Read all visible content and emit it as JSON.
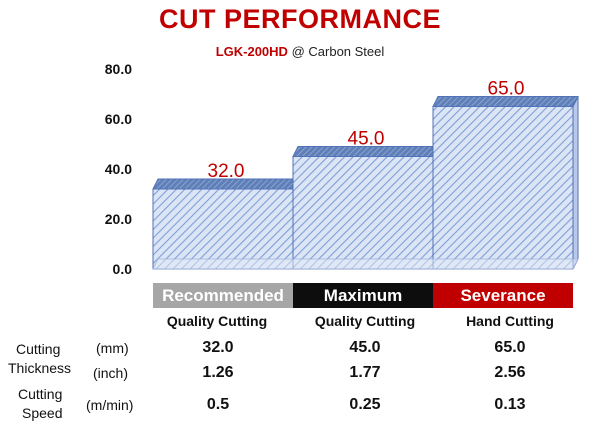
{
  "header": {
    "title": "CUT PERFORMANCE",
    "model": "LGK-200HD",
    "material": "@ Carbon Steel"
  },
  "chart_data": {
    "type": "bar",
    "categories": [
      "Recommended",
      "Maximum",
      "Severance"
    ],
    "values": [
      32.0,
      45.0,
      65.0
    ],
    "data_labels": [
      "32.0",
      "45.0",
      "65.0"
    ],
    "ylim": [
      0,
      80
    ],
    "yticks": [
      0,
      20,
      40,
      60,
      80
    ],
    "ytick_labels": [
      "0.0",
      "20.0",
      "40.0",
      "60.0",
      "80.0"
    ],
    "grid": false,
    "bar_style": "3d-hatched",
    "label_color": "#c00000"
  },
  "categories": [
    {
      "header": "Recommended",
      "sub": "Quality Cutting",
      "color": "#a6a6a6"
    },
    {
      "header": "Maximum",
      "sub": "Quality Cutting",
      "color": "#0d0d0d"
    },
    {
      "header": "Severance",
      "sub": "Hand Cutting",
      "color": "#c00000"
    }
  ],
  "table": {
    "rows": [
      {
        "label_lines": [
          "Cutting",
          "Thickness"
        ],
        "unit": "(mm)",
        "values": [
          "32.0",
          "45.0",
          "65.0"
        ]
      },
      {
        "label_lines": [],
        "unit": "(inch)",
        "values": [
          "1.26",
          "1.77",
          "2.56"
        ]
      },
      {
        "label_lines": [
          "Cutting",
          "Speed"
        ],
        "unit": "(m/min)",
        "values": [
          "0.5",
          "0.25",
          "0.13"
        ]
      }
    ]
  }
}
